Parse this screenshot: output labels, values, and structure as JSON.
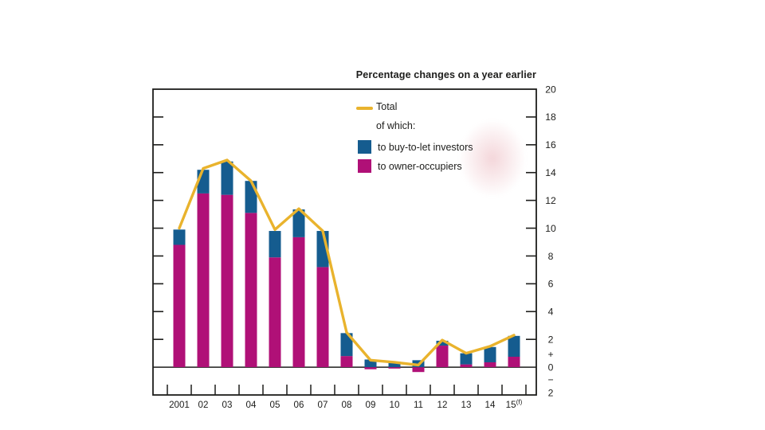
{
  "page": {
    "background": "#ffffff"
  },
  "chart": {
    "title": "Percentage changes on a year earlier",
    "legend": {
      "total_label": "Total",
      "of_which_label": "of which:",
      "buy_to_let_label": "to buy-to-let investors",
      "owner_occupiers_label": "to owner-occupiers"
    },
    "colors": {
      "total_line": "#e9b32d",
      "buy_to_let": "#155c8f",
      "owner_occupiers": "#b01077",
      "axis_and_text": "#1d1d1b",
      "watermark_pink": "#e2949e"
    }
  },
  "chart_data": {
    "type": "stacked-bar-with-line",
    "title": "Percentage changes on a year earlier",
    "categories": [
      "2001",
      "02",
      "03",
      "04",
      "05",
      "06",
      "07",
      "08",
      "09",
      "10",
      "11",
      "12",
      "13",
      "14",
      "15(f)"
    ],
    "series": [
      {
        "name": "to owner-occupiers",
        "kind": "bar",
        "color": "#b01077",
        "values": [
          8.8,
          12.5,
          12.4,
          11.1,
          7.9,
          9.35,
          7.2,
          0.8,
          -0.15,
          -0.1,
          -0.35,
          1.55,
          0.2,
          0.35,
          0.75
        ]
      },
      {
        "name": "to buy-to-let investors",
        "kind": "bar",
        "color": "#155c8f",
        "values": [
          1.1,
          1.7,
          2.4,
          2.3,
          1.9,
          2.0,
          2.6,
          1.65,
          0.55,
          0.4,
          0.5,
          0.35,
          0.8,
          1.1,
          1.5
        ]
      },
      {
        "name": "Total",
        "kind": "line",
        "color": "#e9b32d",
        "values": [
          10.0,
          14.3,
          14.9,
          13.4,
          9.9,
          11.4,
          9.8,
          2.5,
          0.5,
          0.35,
          0.15,
          1.95,
          1.0,
          1.5,
          2.3
        ]
      }
    ],
    "ylim": [
      -2,
      20
    ],
    "ytick_step": 2,
    "grid": false,
    "legend_position": "inside-top-left",
    "y_axis_labels": [
      {
        "text": "20",
        "v": 20
      },
      {
        "text": "18",
        "v": 18
      },
      {
        "text": "16",
        "v": 16
      },
      {
        "text": "14",
        "v": 14
      },
      {
        "text": "12",
        "v": 12
      },
      {
        "text": "10",
        "v": 10
      },
      {
        "text": "8",
        "v": 8
      },
      {
        "text": "6",
        "v": 6
      },
      {
        "text": "4",
        "v": 4
      },
      {
        "text": "2",
        "v": 2
      },
      {
        "text": "+",
        "v": 0.95
      },
      {
        "text": "0",
        "v": 0
      },
      {
        "text": "−",
        "v": -0.9
      },
      {
        "text": "2",
        "v": -1.85
      }
    ]
  }
}
